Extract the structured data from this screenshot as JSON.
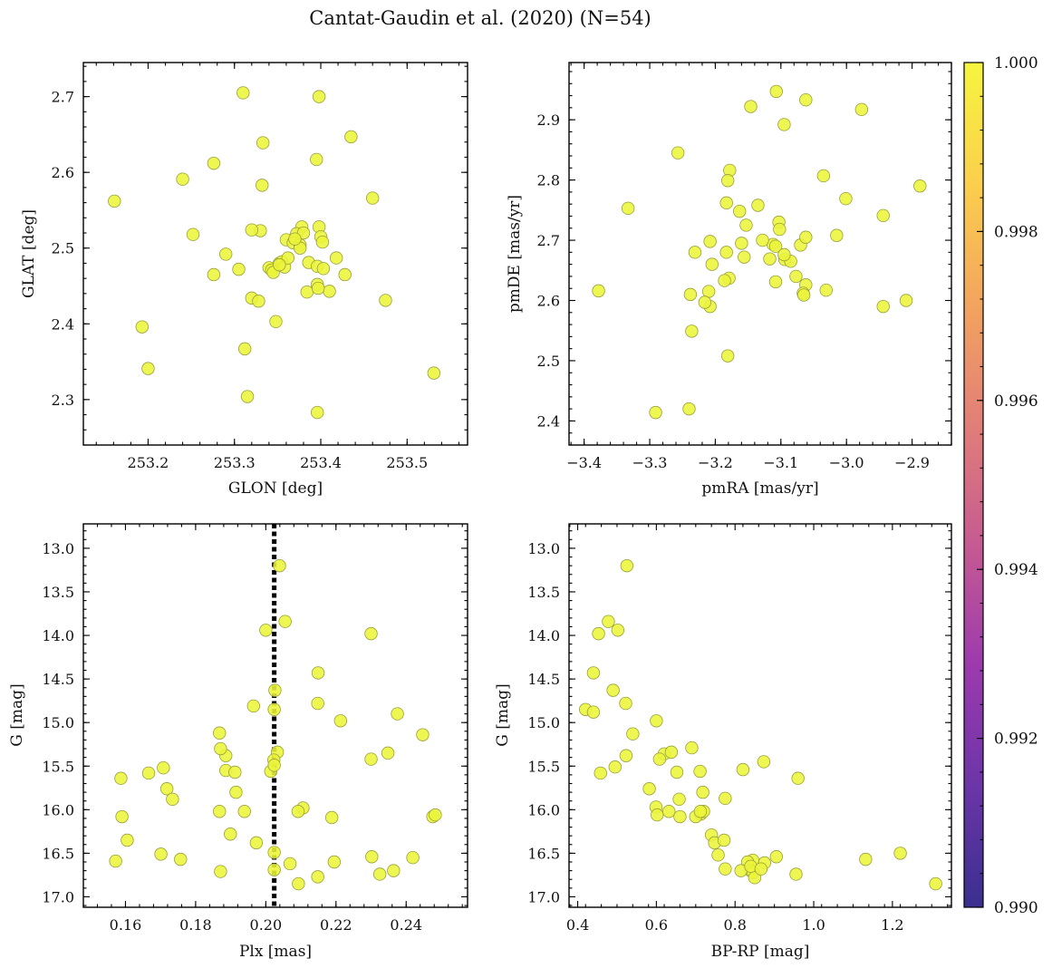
{
  "figure": {
    "title": "Cantat-Gaudin et al. (2020) (N=54)"
  },
  "colorbar": {
    "min": 0.99,
    "max": 1.0,
    "ticks": [
      "1.000",
      "0.998",
      "0.996",
      "0.994",
      "0.992",
      "0.990"
    ],
    "tick_values": [
      1.0,
      0.998,
      0.996,
      0.994,
      0.992,
      0.99
    ],
    "colormap": "plasma",
    "stops": [
      "#3a2f8f",
      "#6b35a8",
      "#9c3aae",
      "#c65a92",
      "#e27e78",
      "#f3a45e",
      "#fbcf4c",
      "#f6f53e"
    ]
  },
  "point_style": {
    "fill": "#ecf53a",
    "stroke": "#9aa03a",
    "opacity": 0.88
  },
  "chart_data": [
    {
      "type": "scatter",
      "id": "glon-glat",
      "title": "",
      "xlabel": "GLON [deg]",
      "ylabel": "GLAT [deg]",
      "xlim": [
        253.125,
        253.57
      ],
      "ylim": [
        2.24,
        2.745
      ],
      "xticks": [
        253.2,
        253.3,
        253.4,
        253.5
      ],
      "xtick_labels": [
        "253.2",
        "253.3",
        "253.4",
        "253.5"
      ],
      "yticks": [
        2.3,
        2.4,
        2.5,
        2.6,
        2.7
      ],
      "ytick_labels": [
        "2.3",
        "2.4",
        "2.5",
        "2.6",
        "2.7"
      ],
      "x": [
        253.31,
        253.398,
        253.435,
        253.333,
        253.395,
        253.24,
        253.276,
        253.161,
        253.332,
        253.46,
        253.252,
        253.378,
        253.398,
        253.33,
        253.32,
        253.36,
        253.372,
        253.38,
        253.4,
        253.368,
        253.352,
        253.355,
        253.376,
        253.402,
        253.34,
        253.358,
        253.362,
        253.29,
        253.386,
        253.418,
        253.396,
        253.276,
        253.305,
        253.403,
        253.343,
        253.428,
        253.396,
        253.384,
        253.41,
        253.397,
        253.32,
        253.328,
        253.475,
        253.348,
        253.193,
        253.312,
        253.2,
        253.531,
        253.315,
        253.396,
        253.345,
        253.352,
        253.376,
        253.37
      ],
      "y": [
        2.705,
        2.7,
        2.647,
        2.639,
        2.617,
        2.591,
        2.612,
        2.562,
        2.583,
        2.566,
        2.518,
        2.528,
        2.528,
        2.523,
        2.524,
        2.511,
        2.519,
        2.52,
        2.515,
        2.507,
        2.48,
        2.482,
        2.504,
        2.508,
        2.474,
        2.475,
        2.487,
        2.492,
        2.481,
        2.487,
        2.476,
        2.465,
        2.472,
        2.473,
        2.471,
        2.465,
        2.452,
        2.442,
        2.443,
        2.447,
        2.434,
        2.43,
        2.431,
        2.403,
        2.396,
        2.367,
        2.341,
        2.335,
        2.304,
        2.283,
        2.468,
        2.478,
        2.5,
        2.512
      ]
    },
    {
      "type": "scatter",
      "id": "pmra-pmde",
      "title": "",
      "xlabel": "pmRA [mas/yr]",
      "ylabel": "pmDE [mas/yr]",
      "xlim": [
        -3.423,
        -2.84
      ],
      "ylim": [
        2.36,
        2.995
      ],
      "xticks": [
        -3.4,
        -3.3,
        -3.2,
        -3.1,
        -3.0,
        -2.9
      ],
      "xtick_labels": [
        "−3.4",
        "−3.3",
        "−3.2",
        "−3.1",
        "−3.0",
        "−2.9"
      ],
      "yticks": [
        2.4,
        2.5,
        2.6,
        2.7,
        2.8,
        2.9
      ],
      "ytick_labels": [
        "2.4",
        "2.5",
        "2.6",
        "2.7",
        "2.8",
        "2.9"
      ],
      "x": [
        -3.107,
        -3.062,
        -3.146,
        -2.977,
        -3.095,
        -3.257,
        -2.888,
        -3.035,
        -3.178,
        -3.181,
        -3.001,
        -3.333,
        -3.135,
        -3.183,
        -2.944,
        -3.163,
        -3.153,
        -3.103,
        -3.015,
        -3.208,
        -3.07,
        -3.231,
        -3.102,
        -3.112,
        -3.062,
        -3.16,
        -3.094,
        -3.108,
        -3.117,
        -3.21,
        -3.156,
        -3.085,
        -3.062,
        -3.031,
        -3.108,
        -3.179,
        -3.186,
        -3.238,
        -3.378,
        -3.208,
        -3.216,
        -2.909,
        -2.944,
        -3.066,
        -3.065,
        -3.236,
        -3.181,
        -3.291,
        -3.24,
        -3.095,
        -3.128,
        -3.077,
        -3.205,
        -3.183
      ],
      "y": [
        2.947,
        2.933,
        2.922,
        2.917,
        2.892,
        2.845,
        2.79,
        2.807,
        2.816,
        2.799,
        2.769,
        2.753,
        2.758,
        2.762,
        2.741,
        2.748,
        2.725,
        2.73,
        2.708,
        2.698,
        2.692,
        2.68,
        2.718,
        2.693,
        2.705,
        2.695,
        2.668,
        2.69,
        2.669,
        2.615,
        2.672,
        2.665,
        2.626,
        2.617,
        2.631,
        2.637,
        2.633,
        2.61,
        2.616,
        2.59,
        2.597,
        2.6,
        2.59,
        2.612,
        2.609,
        2.549,
        2.508,
        2.414,
        2.42,
        2.676,
        2.7,
        2.64,
        2.66,
        2.68
      ]
    },
    {
      "type": "scatter",
      "id": "plx-g",
      "title": "",
      "xlabel": "Plx [mas]",
      "ylabel": "G [mag]",
      "xlim": [
        0.148,
        0.2575
      ],
      "ylim": [
        17.12,
        12.72
      ],
      "xticks": [
        0.16,
        0.18,
        0.2,
        0.22,
        0.24
      ],
      "xtick_labels": [
        "0.16",
        "0.18",
        "0.20",
        "0.22",
        "0.24"
      ],
      "yticks": [
        13.0,
        13.5,
        14.0,
        14.5,
        15.0,
        15.5,
        16.0,
        16.5,
        17.0
      ],
      "ytick_labels": [
        "13.0",
        "13.5",
        "14.0",
        "14.5",
        "15.0",
        "15.5",
        "16.0",
        "16.5",
        "17.0"
      ],
      "vline": {
        "x": 0.2024,
        "style": "dotted"
      },
      "x": [
        0.2039,
        0.2055,
        0.2,
        0.23,
        0.2149,
        0.2026,
        0.1965,
        0.2148,
        0.2375,
        0.2024,
        0.2213,
        0.2447,
        0.1868,
        0.2033,
        0.1886,
        0.2348,
        0.2023,
        0.23,
        0.2014,
        0.1871,
        0.1886,
        0.1708,
        0.1912,
        0.1666,
        0.1587,
        0.1718,
        0.1734,
        0.1915,
        0.2106,
        0.2092,
        0.1868,
        0.1939,
        0.2188,
        0.159,
        0.2476,
        0.2483,
        0.1899,
        0.1605,
        0.2024,
        0.1973,
        0.2069,
        0.2195,
        0.2302,
        0.2419,
        0.1701,
        0.1572,
        0.1757,
        0.1871,
        0.2024,
        0.2325,
        0.2364,
        0.2148,
        0.2093,
        0.2024
      ],
      "y": [
        13.2,
        13.84,
        13.94,
        13.98,
        14.43,
        14.63,
        14.81,
        14.78,
        14.9,
        14.85,
        14.98,
        15.14,
        15.12,
        15.34,
        15.38,
        15.35,
        15.43,
        15.42,
        15.56,
        15.3,
        15.55,
        15.52,
        15.57,
        15.58,
        15.64,
        15.76,
        15.88,
        15.8,
        15.98,
        16.02,
        16.02,
        16.02,
        16.09,
        16.08,
        16.08,
        16.06,
        16.28,
        16.35,
        16.49,
        16.38,
        16.62,
        16.6,
        16.54,
        16.55,
        16.51,
        16.59,
        16.57,
        16.71,
        16.69,
        16.74,
        16.7,
        16.77,
        16.85,
        15.49
      ]
    },
    {
      "type": "scatter",
      "id": "bprp-g",
      "title": "",
      "xlabel": "BP-RP [mag]",
      "ylabel": "G [mag]",
      "xlim": [
        0.378,
        1.35
      ],
      "ylim": [
        17.12,
        12.72
      ],
      "xticks": [
        0.4,
        0.6,
        0.8,
        1.0,
        1.2
      ],
      "xtick_labels": [
        "0.4",
        "0.6",
        "0.8",
        "1.0",
        "1.2"
      ],
      "yticks": [
        13.0,
        13.5,
        14.0,
        14.5,
        15.0,
        15.5,
        16.0,
        16.5,
        17.0
      ],
      "ytick_labels": [
        "13.0",
        "13.5",
        "14.0",
        "14.5",
        "15.0",
        "15.5",
        "16.0",
        "16.5",
        "17.0"
      ],
      "x": [
        0.525,
        0.478,
        0.453,
        0.502,
        0.44,
        0.49,
        0.522,
        0.42,
        0.44,
        0.6,
        0.54,
        0.873,
        0.523,
        0.62,
        0.608,
        0.638,
        0.69,
        0.82,
        0.458,
        0.495,
        0.711,
        0.652,
        0.96,
        0.582,
        0.775,
        0.718,
        0.658,
        0.599,
        0.602,
        0.713,
        0.632,
        0.7,
        0.72,
        0.74,
        0.748,
        0.772,
        0.757,
        0.845,
        1.22,
        0.905,
        1.132,
        0.832,
        0.84,
        0.875,
        0.775,
        0.846,
        0.815,
        0.955,
        0.85,
        1.31,
        0.66,
        0.712,
        0.84,
        0.866
      ],
      "y": [
        13.2,
        13.84,
        13.98,
        13.94,
        14.43,
        14.63,
        14.78,
        14.85,
        14.88,
        14.98,
        15.13,
        15.45,
        15.38,
        15.36,
        15.42,
        15.34,
        15.29,
        15.54,
        15.58,
        15.51,
        15.56,
        15.57,
        15.64,
        15.76,
        15.87,
        15.8,
        15.88,
        15.97,
        16.06,
        16.05,
        16.02,
        16.08,
        16.02,
        16.29,
        16.38,
        16.35,
        16.52,
        16.58,
        16.5,
        16.54,
        16.57,
        16.6,
        16.7,
        16.61,
        16.68,
        16.72,
        16.7,
        16.74,
        16.78,
        16.85,
        16.08,
        16.02,
        16.65,
        16.68
      ]
    }
  ]
}
